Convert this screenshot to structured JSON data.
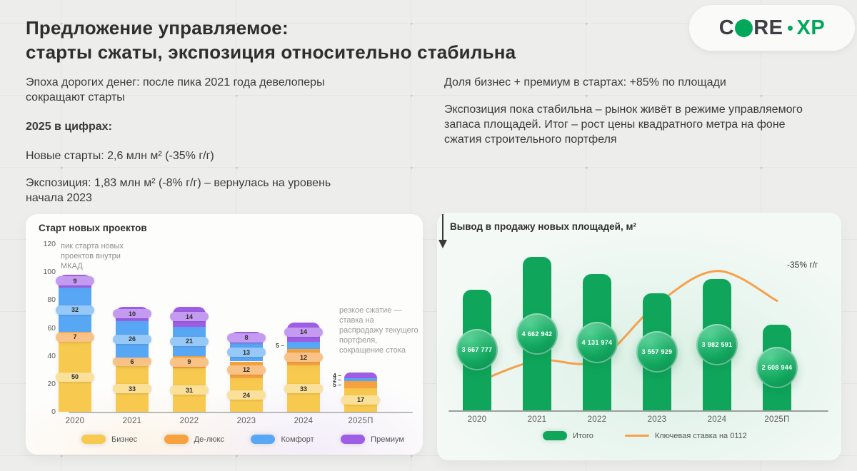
{
  "header": {
    "title_line1": "Предложение управляемое:",
    "title_line2": "старты сжаты, экспозиция относительно стабильна",
    "logo": {
      "c": "C",
      "re": "RE",
      "xp": "XP"
    }
  },
  "intro_left": {
    "p1": "Эпоха дорогих денег: после пика 2021 года девелоперы сокращают старты",
    "p2": "2025 в цифрах:",
    "p3": "Новые старты: 2,6 млн м² (-35% г/г)",
    "p4": "Экспозиция: 1,83 млн м² (-8% г/г) – вернулась на уровень начала 2023"
  },
  "intro_right": {
    "p1": "Доля бизнес + премиум в стартах: +85% по площади",
    "p2": "Экспозиция пока стабильна – рынок живёт в режиме управляемого запаса площадей. Итог – рост цены квадратного метра на фоне сжатия строительного портфеля"
  },
  "chart_data": [
    {
      "type": "bar",
      "stacked": true,
      "title": "Старт новых проектов",
      "categories": [
        "2020",
        "2021",
        "2022",
        "2023",
        "2024",
        "2025П"
      ],
      "series": [
        {
          "name": "Бизнес",
          "color": "#F7C94F",
          "pill": "#FAE099",
          "values": [
            50,
            33,
            31,
            24,
            33,
            17
          ],
          "outside": [
            0,
            0,
            0,
            0,
            0,
            0
          ]
        },
        {
          "name": "Де-люкс",
          "color": "#F6A23E",
          "pill": "#F9C286",
          "values": [
            7,
            6,
            9,
            12,
            12,
            5
          ],
          "outside": [
            0,
            0,
            0,
            0,
            0,
            1
          ]
        },
        {
          "name": "Комфорт",
          "color": "#58A7F5",
          "pill": "#96C8F8",
          "values": [
            32,
            26,
            21,
            13,
            5,
            2
          ],
          "outside": [
            0,
            0,
            0,
            0,
            1,
            1
          ]
        },
        {
          "name": "Премиум",
          "color": "#9D5EE5",
          "pill": "#C59AF1",
          "values": [
            9,
            10,
            14,
            8,
            14,
            4
          ],
          "outside": [
            0,
            0,
            0,
            0,
            0,
            1
          ]
        }
      ],
      "ylim": [
        0,
        120
      ],
      "yticks": [
        0,
        20,
        40,
        60,
        80,
        100,
        120
      ],
      "annotation_peak": "пик старта новых проектов внутри МКАД",
      "annotation_drop": "резкое сжатие — ставка на распродажу текущего портфеля, сокращение стока"
    },
    {
      "type": "bar+line",
      "title": "Вывод в продажу новых площадей, м²",
      "categories": [
        "2020",
        "2021",
        "2022",
        "2023",
        "2024",
        "2025П"
      ],
      "bars": {
        "name": "Итого",
        "color": "#0FA65C",
        "values": [
          3667777,
          4662942,
          4131974,
          3557929,
          3982591,
          2608944
        ],
        "labels": [
          "3 667 777",
          "4 662 942",
          "4 131 974",
          "3 557 929",
          "3 982 591",
          "2 608 944"
        ]
      },
      "line": {
        "name": "Ключевая ставка на 0112",
        "color": "#F5A14B",
        "values_estimated_pct": [
          4.25,
          7.5,
          7.5,
          16,
          21,
          16.5
        ]
      },
      "annotation": "-35% г/г"
    }
  ]
}
